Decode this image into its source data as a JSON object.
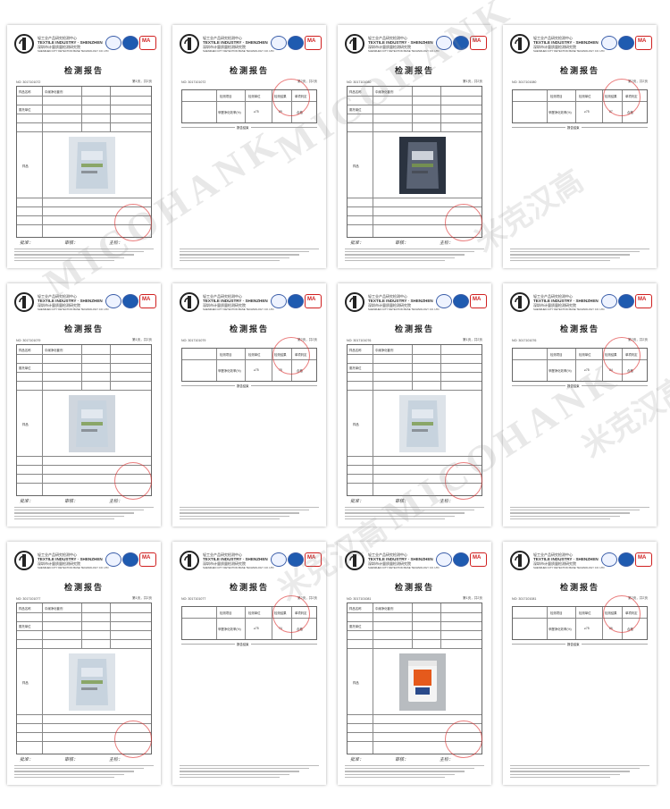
{
  "org": {
    "name_cn": "轻工业产品研究检测中心",
    "name_en": "TEXTILE INDUSTRY · SHENZHEN",
    "sub_cn": "深圳市计量质量检测研究院",
    "sub_en": "SHENZHEN CITY DETECTION BASE TECHNOLOGY CO. LTD"
  },
  "report_title": "检测报告",
  "marks": {
    "badge1": "ilac-MRA",
    "badge2": "CNAS",
    "badge3": "MA"
  },
  "end_mark": "报告结束",
  "watermark": {
    "latin": "MICOHANK",
    "chinese": "米克汉高"
  },
  "pages": [
    {
      "kind": "info",
      "no": "NO: 3017101072",
      "pg": "第1页，共2页",
      "product": "中阑净化套剂"
    },
    {
      "kind": "result",
      "no": "NO: 3017101072",
      "pg": "第2页，共2页",
      "value": "89"
    },
    {
      "kind": "info",
      "no": "NO: 3017101080",
      "pg": "第1页，共2页",
      "product": "中阑净化套剂"
    },
    {
      "kind": "result",
      "no": "NO: 3017101080",
      "pg": "第2页，共2页",
      "value": "87"
    },
    {
      "kind": "info",
      "no": "NO: 3017101079",
      "pg": "第1页，共2页",
      "product": "中阑净化套剂"
    },
    {
      "kind": "result",
      "no": "NO: 3017101079",
      "pg": "第2页，共2页",
      "value": "78"
    },
    {
      "kind": "info",
      "no": "NO: 3017101076",
      "pg": "第1页，共2页",
      "product": "中阑净化套剂"
    },
    {
      "kind": "result",
      "no": "NO: 3017101076",
      "pg": "第2页，共2页",
      "value": "84"
    },
    {
      "kind": "info",
      "no": "NO: 3017101077",
      "pg": "第1页，共2页",
      "product": "中阑净化套剂"
    },
    {
      "kind": "result",
      "no": "NO: 3017101077",
      "pg": "第2页，共2页",
      "value": "74"
    },
    {
      "kind": "info",
      "no": "NO: 3017101081",
      "pg": "第1页，共2页",
      "product": "中阑净化套剂"
    },
    {
      "kind": "result",
      "no": "NO: 3017101081",
      "pg": "第2页，共2页",
      "value": "86"
    }
  ],
  "table_labels": {
    "item": "检测项目",
    "unit": "检测单位",
    "result": "检测结果",
    "verdict": "单项判定",
    "row_item": "甲醛净化效率(%)",
    "row_unit": "≥75",
    "row_verdict": "合格",
    "sample": "样品名称",
    "client": "委托单位",
    "sample_photo": "样品"
  },
  "signers": {
    "approve": "批准：",
    "review": "审核：",
    "main": "主检："
  }
}
